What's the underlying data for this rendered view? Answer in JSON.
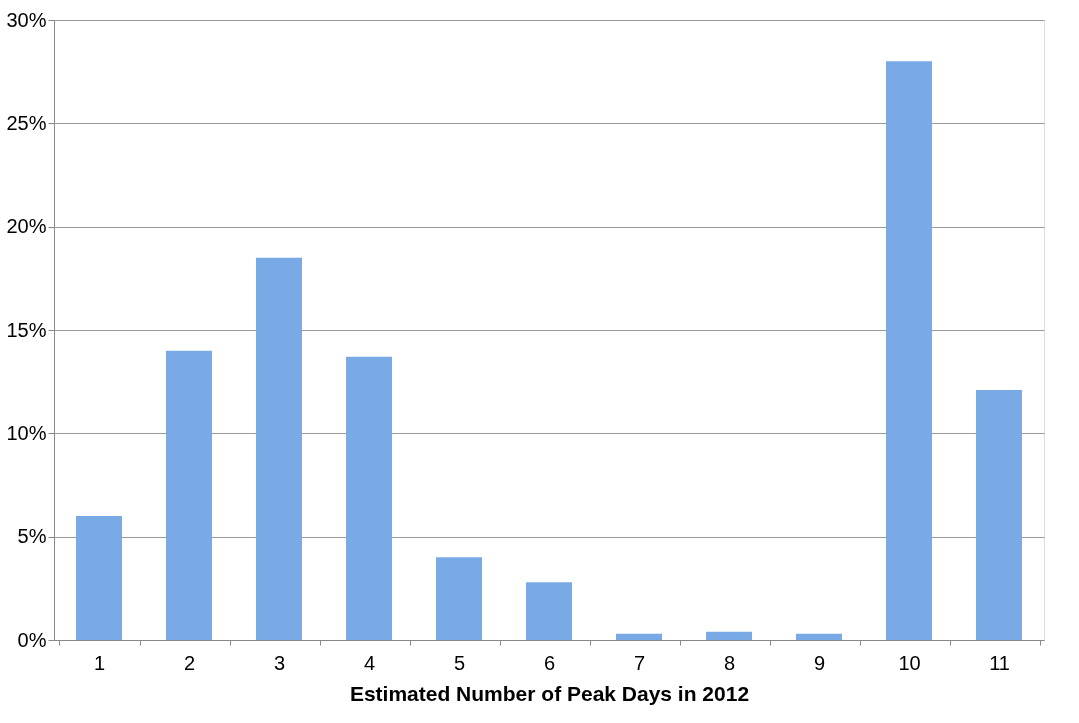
{
  "chart_data": {
    "type": "bar",
    "xlabel": "Estimated Number of Peak Days in 2012",
    "categories": [
      "1",
      "2",
      "3",
      "4",
      "5",
      "6",
      "7",
      "8",
      "9",
      "10",
      "11"
    ],
    "values": [
      6.0,
      14.0,
      18.5,
      13.7,
      4.0,
      2.8,
      0.3,
      0.4,
      0.3,
      28.0,
      12.1
    ],
    "color": "#7aaae6",
    "ylim": [
      0,
      30
    ],
    "yticks": [
      {
        "value": 0,
        "label": "0%"
      },
      {
        "value": 5,
        "label": "5%"
      },
      {
        "value": 10,
        "label": "10%"
      },
      {
        "value": 15,
        "label": "15%"
      },
      {
        "value": 20,
        "label": "20%"
      },
      {
        "value": 25,
        "label": "25%"
      },
      {
        "value": 30,
        "label": "30%"
      }
    ],
    "grid": "y"
  }
}
